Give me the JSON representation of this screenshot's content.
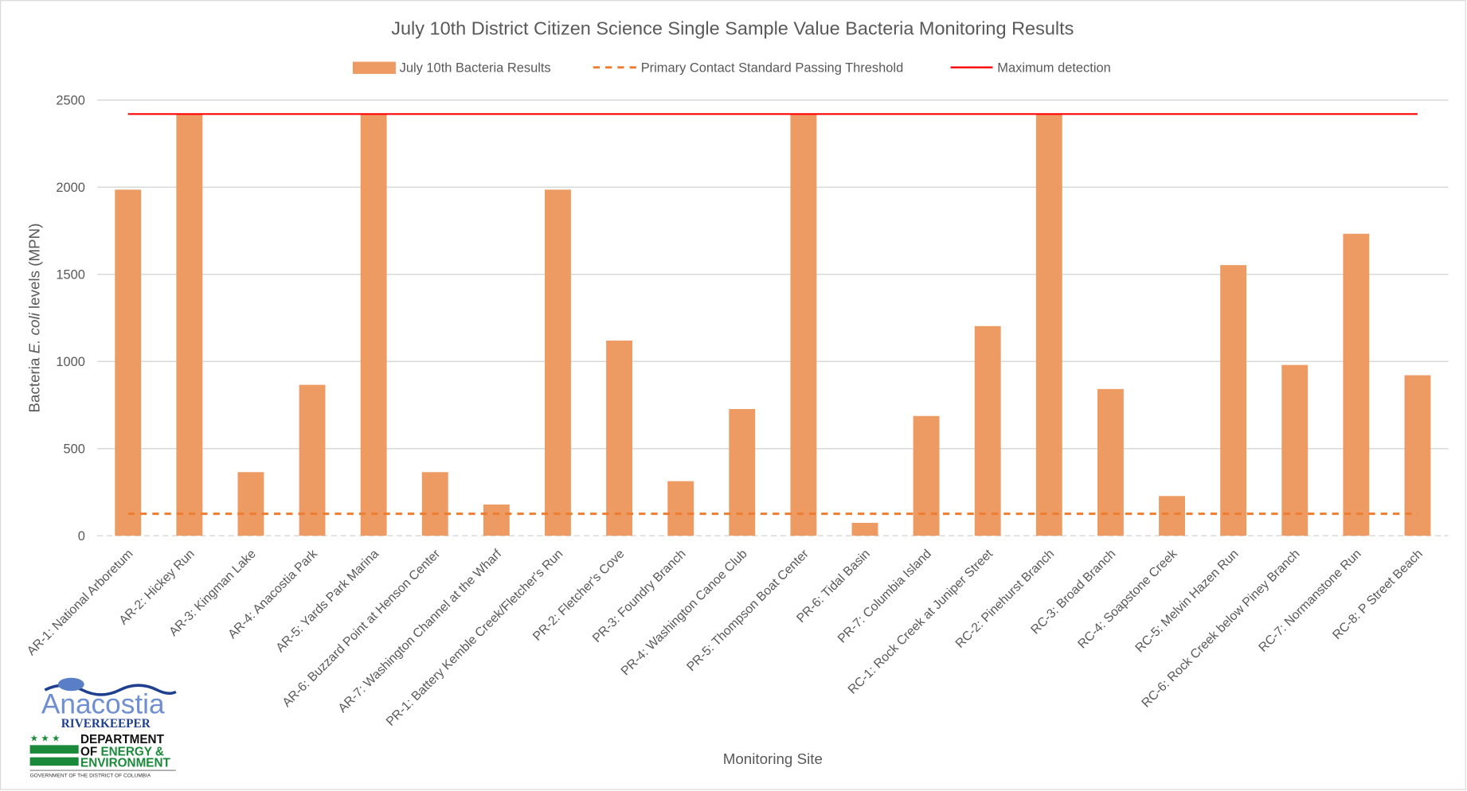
{
  "chart_data": {
    "type": "bar",
    "title": "July 10th District Citizen Science Single Sample Value Bacteria Monitoring Results",
    "xlabel": "Monitoring Site",
    "ylabel": {
      "prefix": "Bacteria ",
      "italic": "E. coli",
      "suffix": " levels (MPN)"
    },
    "ylim": [
      0,
      2500
    ],
    "yticks": [
      0,
      500,
      1000,
      1500,
      2000,
      2500
    ],
    "grid": true,
    "legend_position": "top",
    "categories": [
      "AR-1: National Arboretum",
      "AR-2: Hickey Run",
      "AR-3: Kingman Lake",
      "AR-4: Anacostia Park",
      "AR-5: Yards Park Marina",
      "AR-6: Buzzard Point at Henson Center",
      "AR-7: Washington Channel at the Wharf",
      "PR-1: Battery Kemble Creek/Fletcher's Run",
      "PR-2: Fletcher's Cove",
      "PR-3: Foundry Branch",
      "PR-4: Washington Canoe Club",
      "PR-5: Thompson Boat Center",
      "PR-6: Tidal Basin",
      "PR-7: Columbia Island",
      "RC-1: Rock Creek at Juniper Street",
      "RC-2: Pinehurst Branch",
      "RC-3: Broad Branch",
      "RC-4: Soapstone Creek",
      "RC-5: Melvin Hazen Run",
      "RC-6: Rock Creek below Piney Branch",
      "RC-7: Normanstone Run",
      "RC-8: P Street Beach"
    ],
    "series": [
      {
        "name": "July 10th Bacteria Results",
        "type": "bar",
        "color": "#ED9B63",
        "values": [
          1986,
          2420,
          365,
          866,
          2420,
          365,
          179,
          1986,
          1120,
          313,
          727,
          2420,
          74,
          687,
          1203,
          2420,
          842,
          228,
          1553,
          980,
          1733,
          921
        ]
      },
      {
        "name": "Primary Contact Standard Passing Threshold",
        "type": "dashed-line",
        "color": "#ED7D31",
        "value": 126
      },
      {
        "name": "Maximum detection",
        "type": "line",
        "color": "#FF0000",
        "value": 2420
      }
    ]
  },
  "logos": {
    "riverkeeper": {
      "line1": "Anacostia",
      "line2": "RIVERKEEPER"
    },
    "doee": {
      "line1": "DEPARTMENT",
      "line2a": "OF ",
      "line2b": "ENERGY &",
      "line3": "ENVIRONMENT",
      "line4": "GOVERNMENT OF THE DISTRICT OF COLUMBIA"
    }
  }
}
